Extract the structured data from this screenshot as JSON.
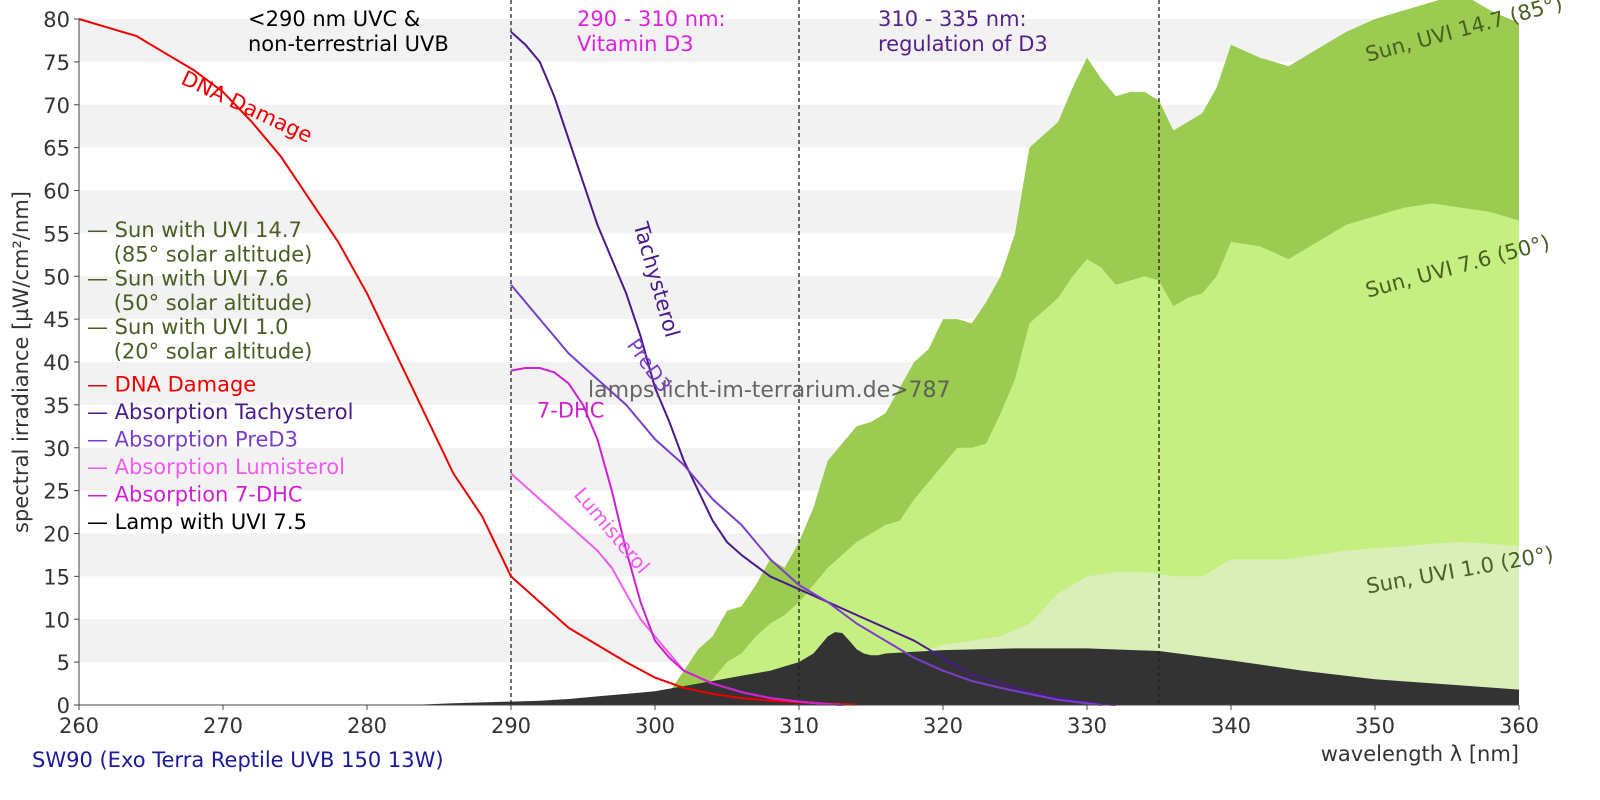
{
  "chart_data": {
    "type": "area",
    "title": "",
    "xlabel": "wavelength λ [nm]",
    "ylabel": "spectral irradiance [µW/cm²/nm]",
    "xlim": [
      260,
      360
    ],
    "ylim": [
      0,
      80
    ],
    "x_ticks": [
      "260",
      "270",
      "280",
      "290",
      "300",
      "310",
      "320",
      "330",
      "340",
      "350",
      "360"
    ],
    "y_ticks": [
      "0",
      "5",
      "10",
      "15",
      "20",
      "25",
      "30",
      "35",
      "40",
      "45",
      "50",
      "55",
      "60",
      "65",
      "70",
      "75",
      "80"
    ],
    "grid": "horizontal alternating bands",
    "footer": "SW90 (Exo Terra Reptile UVB 150 13W)",
    "watermark": "lamps.licht-im-terrarium.de>787",
    "regions": [
      {
        "x": 290,
        "label_lines": [
          "<290 nm UVC &",
          "non-terrestrial UVB"
        ],
        "color": "#000000"
      },
      {
        "x": 310,
        "label_lines": [
          "290 - 310 nm:",
          "Vitamin D3"
        ],
        "color": "#dd22dd"
      },
      {
        "x": 335,
        "label_lines": [
          "310 - 335 nm:",
          "regulation of D3"
        ],
        "color": "#552288"
      }
    ],
    "legend": [
      {
        "lines": [
          "— Sun with UVI 14.7",
          "   (85° solar altitude)"
        ],
        "color": "#4a5e23"
      },
      {
        "lines": [
          "— Sun with UVI 7.6",
          "   (50° solar altitude)"
        ],
        "color": "#4a5e23"
      },
      {
        "lines": [
          "— Sun with UVI 1.0",
          "   (20° solar altitude)"
        ],
        "color": "#4a5e23"
      },
      {
        "lines": [
          "— DNA Damage"
        ],
        "color": "#ee0000"
      },
      {
        "lines": [
          "— Absorption Tachysterol"
        ],
        "color": "#4b1a8a"
      },
      {
        "lines": [
          "— Absorption PreD3"
        ],
        "color": "#7a3ec8"
      },
      {
        "lines": [
          "— Absorption Lumisterol"
        ],
        "color": "#f05cf0"
      },
      {
        "lines": [
          "— Absorption 7-DHC"
        ],
        "color": "#d020d0"
      },
      {
        "lines": [
          "— Lamp with UVI 7.5"
        ],
        "color": "#000000"
      }
    ],
    "areas": [
      {
        "name": "Sun, UVI 14.7 (85°)",
        "color": "#9bcb50",
        "x": [
          300,
          301,
          302,
          303,
          304,
          305,
          306,
          307,
          308,
          309,
          310,
          311,
          312,
          313,
          314,
          315,
          316,
          317,
          318,
          319,
          320,
          321,
          322,
          323,
          324,
          325,
          326,
          327,
          328,
          329,
          330,
          331,
          332,
          333,
          334,
          335,
          336,
          337,
          338,
          339,
          340,
          342,
          344,
          346,
          348,
          350,
          352,
          354,
          356,
          358,
          360
        ],
        "y": [
          0,
          1.5,
          4,
          6.5,
          8,
          11,
          11.5,
          14,
          17,
          16,
          19,
          23,
          28.5,
          30.5,
          32.5,
          33,
          34,
          37,
          40,
          41.5,
          45,
          45,
          44.5,
          47,
          50,
          55,
          65,
          66.5,
          68,
          72,
          75.5,
          73,
          71,
          71.5,
          71.5,
          70.5,
          67,
          68,
          69,
          72,
          77,
          75.5,
          74.5,
          76.5,
          78.5,
          80,
          81,
          82,
          83,
          81,
          79.5
        ]
      },
      {
        "name": "Sun, UVI 7.6 (50°)",
        "color": "#c6ef82",
        "x": [
          302,
          304,
          305,
          306,
          307,
          308,
          309,
          310,
          311,
          312,
          313,
          314,
          315,
          316,
          317,
          318,
          319,
          320,
          321,
          322,
          323,
          324,
          325,
          326,
          327,
          328,
          329,
          330,
          331,
          332,
          333,
          334,
          335,
          336,
          337,
          338,
          339,
          340,
          342,
          344,
          346,
          348,
          350,
          352,
          354,
          356,
          358,
          360
        ],
        "y": [
          0,
          3,
          5,
          6,
          8,
          9.5,
          10.5,
          12,
          14,
          16,
          17.5,
          19,
          20,
          21,
          21.5,
          24,
          26,
          28,
          30,
          30,
          30.5,
          34,
          38,
          44.5,
          46,
          47.5,
          50,
          52,
          51,
          49,
          49.5,
          50,
          49.5,
          46.5,
          47.5,
          48,
          50,
          54,
          53.5,
          52,
          54,
          56,
          57,
          58,
          58.5,
          58,
          57.5,
          56.5
        ]
      },
      {
        "name": "Sun, UVI 1.0 (20°)",
        "color": "#daefb8",
        "x": [
          305,
          308,
          310,
          312,
          314,
          316,
          318,
          320,
          322,
          324,
          326,
          328,
          330,
          332,
          334,
          336,
          338,
          340,
          342,
          344,
          346,
          348,
          350,
          352,
          354,
          356,
          358,
          360
        ],
        "y": [
          0,
          1,
          2,
          3,
          4,
          5,
          6,
          7,
          7.5,
          8,
          9.5,
          13,
          15,
          15.5,
          15.5,
          15,
          15,
          17,
          17,
          17,
          17.5,
          18,
          18.3,
          18.5,
          18.8,
          19,
          18.8,
          18.5
        ]
      },
      {
        "name": "Lamp with UVI 7.5",
        "color": "#333333",
        "x": [
          283,
          286,
          288,
          290,
          292,
          294,
          296,
          298,
          300,
          302,
          304,
          306,
          308,
          309,
          310,
          311,
          311.5,
          312,
          312.5,
          313,
          313.5,
          314,
          314.5,
          315,
          315.5,
          316,
          318,
          320,
          325,
          330,
          335,
          340,
          345,
          350,
          355,
          360
        ],
        "y": [
          0,
          0.2,
          0.3,
          0.4,
          0.5,
          0.7,
          1,
          1.3,
          1.6,
          2.2,
          2.8,
          3.4,
          4,
          4.5,
          5,
          6,
          7,
          8,
          8.5,
          8.4,
          7.5,
          6.5,
          6,
          5.8,
          5.8,
          6,
          6.2,
          6.4,
          6.6,
          6.6,
          6.3,
          5.2,
          4,
          3,
          2.4,
          1.8
        ]
      }
    ],
    "series": [
      {
        "name": "DNA Damage",
        "color": "#ee0000",
        "x": [
          260,
          262,
          264,
          266,
          268,
          270,
          272,
          274,
          276,
          278,
          280,
          282,
          284,
          286,
          288,
          290,
          292,
          294,
          296,
          298,
          300,
          302,
          304,
          306,
          308,
          310,
          312,
          314
        ],
        "y": [
          80,
          79,
          78,
          76,
          74,
          71.5,
          68,
          64,
          59,
          54,
          48,
          41,
          34,
          27,
          22,
          15,
          12,
          9,
          7,
          5,
          3.2,
          2,
          1.3,
          0.8,
          0.5,
          0.3,
          0.15,
          0.05
        ]
      },
      {
        "name": "Tachysterol",
        "color": "#4b1a8a",
        "x": [
          290,
          291,
          292,
          293,
          294,
          295,
          296,
          297,
          298,
          299,
          300,
          301,
          302,
          303,
          304,
          305,
          306,
          308,
          310,
          312,
          314,
          316,
          318,
          320,
          322,
          324,
          326,
          328,
          330,
          331,
          332
        ],
        "y": [
          78.5,
          77,
          75,
          71,
          66,
          61,
          56,
          52,
          48,
          43,
          37,
          33,
          28.5,
          25,
          21.5,
          19,
          17.5,
          15,
          13.5,
          12,
          10.5,
          9,
          7.5,
          5.5,
          3.5,
          2.5,
          1.5,
          0.8,
          0.3,
          0.1,
          0
        ]
      },
      {
        "name": "PreD3",
        "color": "#7a3ec8",
        "x": [
          290,
          292,
          294,
          296,
          298,
          300,
          302,
          304,
          306,
          308,
          310,
          312,
          314,
          316,
          318,
          320,
          322,
          324,
          326,
          328,
          330,
          331
        ],
        "y": [
          49,
          45,
          41,
          38,
          35,
          31,
          28,
          24,
          21,
          17,
          14,
          12,
          9.5,
          7.5,
          5.5,
          4,
          2.8,
          2,
          1.3,
          0.6,
          0.2,
          0
        ]
      },
      {
        "name": "Lumisterol",
        "color": "#f05cf0",
        "x": [
          290,
          292,
          294,
          296,
          297,
          298,
          299,
          300,
          301,
          302,
          304,
          306,
          308,
          310,
          312,
          313
        ],
        "y": [
          27,
          24,
          21,
          18,
          16,
          13,
          10,
          8,
          6,
          4,
          2.5,
          1.5,
          0.8,
          0.4,
          0.1,
          0
        ]
      },
      {
        "name": "7-DHC",
        "color": "#d020d0",
        "x": [
          290,
          291,
          292,
          293,
          294,
          295,
          296,
          297,
          298,
          299,
          300,
          301,
          302,
          304,
          306,
          308,
          310,
          312,
          313
        ],
        "y": [
          39,
          39.3,
          39.3,
          38.8,
          37.5,
          35,
          31,
          25,
          18,
          12,
          7.5,
          5.5,
          4,
          2.5,
          1.5,
          0.8,
          0.4,
          0.1,
          0
        ]
      }
    ],
    "annotations": [
      {
        "text": "DNA Damage",
        "x": 267,
        "y": 72.5,
        "rotate": 25,
        "color": "#ee0000",
        "size": 21
      },
      {
        "text": "Tachysterol",
        "x": 298.5,
        "y": 56,
        "rotate": 74,
        "color": "#4b1a8a",
        "size": 21
      },
      {
        "text": "PreD3",
        "x": 298,
        "y": 42,
        "rotate": 55,
        "color": "#7a3ec8",
        "size": 20
      },
      {
        "text": "7-DHC",
        "x": 291.8,
        "y": 33.5,
        "rotate": 0,
        "color": "#d020d0",
        "size": 21
      },
      {
        "text": "Lumisterol",
        "x": 294.3,
        "y": 24.5,
        "rotate": 50,
        "color": "#f05cf0",
        "size": 20
      },
      {
        "text": "Sun, UVI 14.7 (85°)",
        "x": 349.5,
        "y": 75,
        "rotate": -15,
        "color": "#4a5e23",
        "size": 21
      },
      {
        "text": "Sun, UVI 7.6 (50°)",
        "x": 349.5,
        "y": 47.5,
        "rotate": -15,
        "color": "#4a5e23",
        "size": 21
      },
      {
        "text": "Sun, UVI 1.0 (20°)",
        "x": 349.5,
        "y": 13,
        "rotate": -10,
        "color": "#4a5e23",
        "size": 21
      }
    ]
  }
}
